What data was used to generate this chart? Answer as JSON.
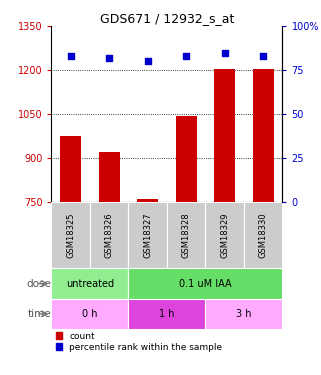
{
  "title": "GDS671 / 12932_s_at",
  "samples": [
    "GSM18325",
    "GSM18326",
    "GSM18327",
    "GSM18328",
    "GSM18329",
    "GSM18330"
  ],
  "bar_values": [
    975,
    920,
    762,
    1045,
    1205,
    1205
  ],
  "percentile_values": [
    83,
    82,
    80,
    83,
    85,
    83
  ],
  "bar_color": "#cc0000",
  "dot_color": "#0000cc",
  "ylim_left": [
    750,
    1350
  ],
  "ylim_right": [
    0,
    100
  ],
  "yticks_left": [
    750,
    900,
    1050,
    1200,
    1350
  ],
  "yticks_right": [
    0,
    25,
    50,
    75,
    100
  ],
  "dose_labels": [
    {
      "label": "untreated",
      "start": 0,
      "end": 2,
      "color": "#90ee90"
    },
    {
      "label": "0.1 uM IAA",
      "start": 2,
      "end": 6,
      "color": "#66dd66"
    }
  ],
  "time_labels": [
    {
      "label": "0 h",
      "start": 0,
      "end": 2,
      "color": "#ffaaff"
    },
    {
      "label": "1 h",
      "start": 2,
      "end": 4,
      "color": "#dd44dd"
    },
    {
      "label": "3 h",
      "start": 4,
      "end": 6,
      "color": "#ffaaff"
    }
  ],
  "sample_bg_color": "#cccccc",
  "left_axis_color": "#cc0000",
  "right_axis_color": "#0000cc",
  "background_color": "#ffffff",
  "dose_row_label": "dose",
  "time_row_label": "time",
  "legend_items": [
    {
      "label": "count",
      "color": "#cc0000"
    },
    {
      "label": "percentile rank within the sample",
      "color": "#0000cc"
    }
  ]
}
